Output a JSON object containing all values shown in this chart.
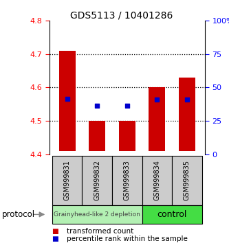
{
  "title": "GDS5113 / 10401286",
  "samples": [
    "GSM999831",
    "GSM999832",
    "GSM999833",
    "GSM999834",
    "GSM999835"
  ],
  "bar_bottoms": [
    4.41,
    4.41,
    4.41,
    4.41,
    4.41
  ],
  "bar_tops": [
    4.71,
    4.5,
    4.5,
    4.6,
    4.63
  ],
  "percentile_values": [
    4.565,
    4.545,
    4.545,
    4.563,
    4.563
  ],
  "ylim": [
    4.4,
    4.8
  ],
  "y2lim": [
    0,
    100
  ],
  "yticks": [
    4.4,
    4.5,
    4.6,
    4.7,
    4.8
  ],
  "y2ticks": [
    0,
    25,
    50,
    75,
    100
  ],
  "y2ticklabels": [
    "0",
    "25",
    "50",
    "75",
    "100%"
  ],
  "bar_color": "#cc0000",
  "dot_color": "#0000cc",
  "group1_label": "Grainyhead-like 2 depletion",
  "group2_label": "control",
  "group1_color": "#b3f0b3",
  "group2_color": "#44dd44",
  "protocol_label": "protocol",
  "legend_red": "transformed count",
  "legend_blue": "percentile rank within the sample",
  "bar_width": 0.55
}
